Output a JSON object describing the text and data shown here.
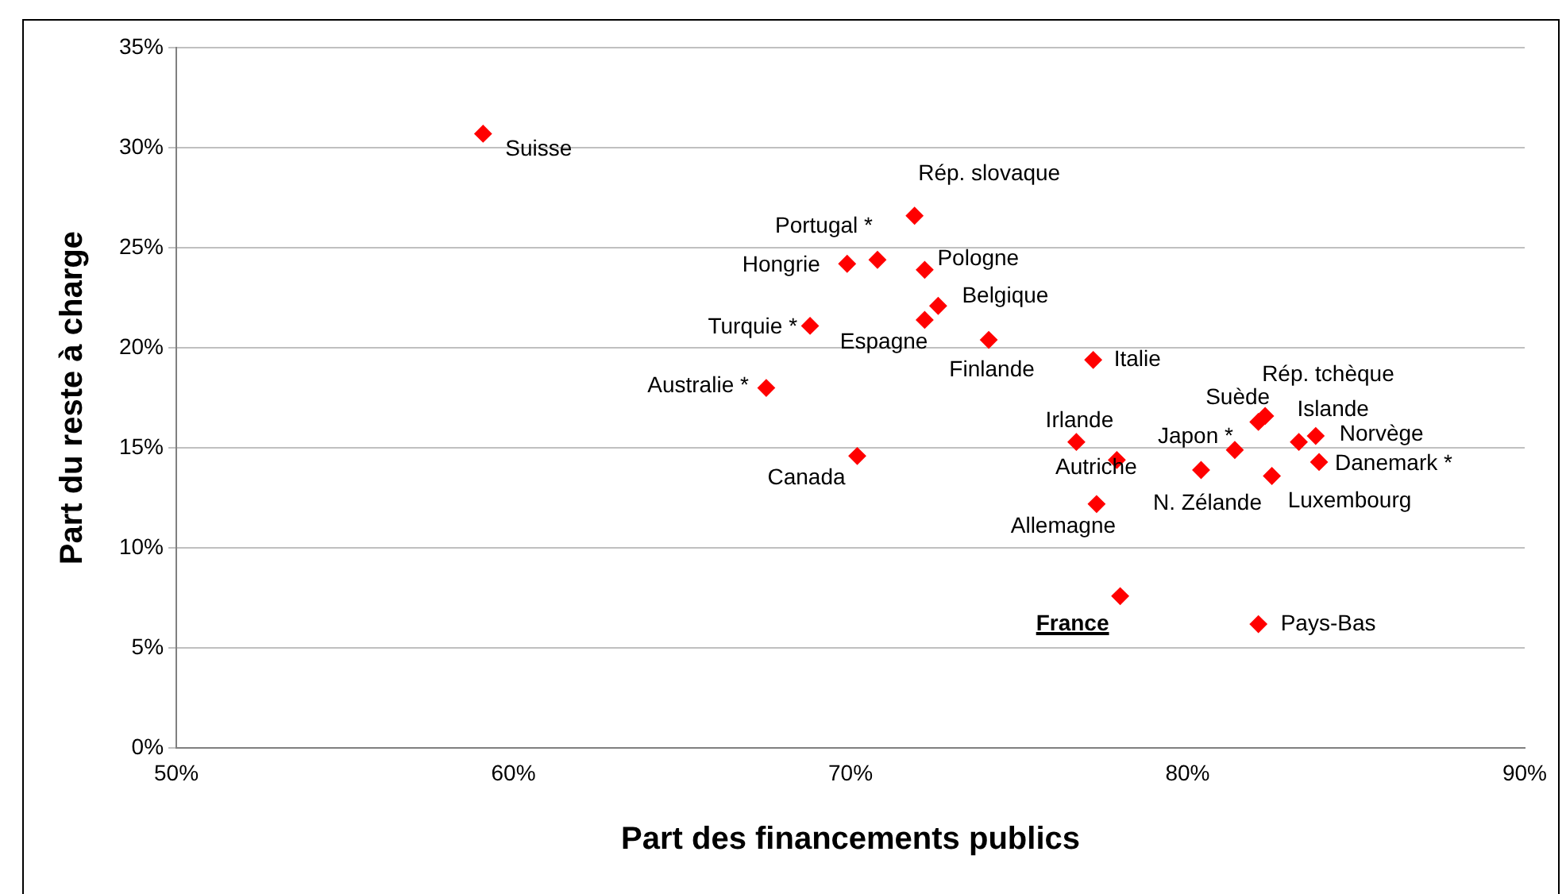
{
  "chart_data": {
    "type": "scatter",
    "xlabel": "Part des financements publics",
    "ylabel": "Part du reste à charge",
    "x": [
      59.1,
      71.9,
      70.8,
      69.9,
      72.2,
      72.6,
      72.2,
      68.8,
      74.1,
      77.2,
      67.5,
      70.2,
      76.7,
      77.9,
      77.3,
      81.4,
      80.4,
      82.1,
      82.3,
      83.3,
      83.8,
      83.9,
      82.5,
      78.0,
      82.1
    ],
    "values": [
      30.7,
      26.6,
      24.4,
      24.2,
      23.9,
      22.1,
      21.4,
      21.1,
      20.4,
      19.4,
      18.0,
      14.6,
      15.3,
      14.4,
      12.2,
      14.9,
      13.9,
      16.3,
      16.6,
      15.3,
      15.6,
      14.3,
      13.6,
      7.6,
      6.2
    ],
    "value_labels": [
      "Suisse",
      "Rép. slovaque",
      "Portugal *",
      "Hongrie",
      "Pologne",
      "Belgique",
      "Espagne",
      "Turquie *",
      "Finlande",
      "Italie",
      "Australie *",
      "Canada",
      "Irlande",
      "Autriche",
      "Allemagne",
      "Japon *",
      "N. Zélande",
      "Suède",
      "Rép. tchèque",
      "Islande",
      "Norvège",
      "Danemark *",
      "Luxembourg",
      "France",
      "Pays-Bas"
    ],
    "color": "#ff0000",
    "marker": "diamond",
    "grid": "y",
    "legend": false,
    "xlim": [
      50,
      90
    ],
    "xticks": [
      {
        "value": 50,
        "label": "50%"
      },
      {
        "value": 60,
        "label": "60%"
      },
      {
        "value": 70,
        "label": "70%"
      },
      {
        "value": 80,
        "label": "80%"
      },
      {
        "value": 90,
        "label": "90%"
      }
    ],
    "ylim": [
      0,
      35
    ],
    "yticks": [
      {
        "value": 0,
        "label": "0%"
      },
      {
        "value": 5,
        "label": "5%"
      },
      {
        "value": 10,
        "label": "10%"
      },
      {
        "value": 15,
        "label": "15%"
      },
      {
        "value": 20,
        "label": "20%"
      },
      {
        "value": 25,
        "label": "25%"
      },
      {
        "value": 30,
        "label": "30%"
      },
      {
        "value": 35,
        "label": "35%"
      }
    ]
  }
}
